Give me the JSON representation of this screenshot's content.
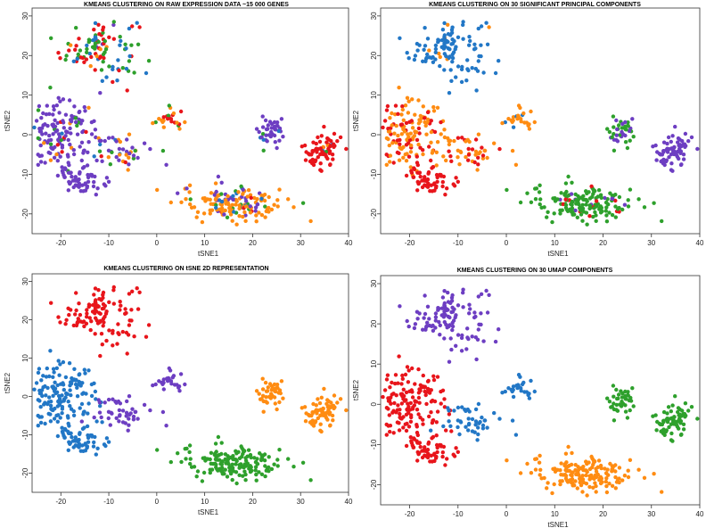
{
  "colors": {
    "red": "#e8151b",
    "blue": "#2277c6",
    "green": "#2ea02c",
    "purple": "#6d3ec2",
    "orange": "#ff8c12"
  },
  "chart_data": [
    {
      "type": "scatter",
      "title": "KMEANS CLUSTERING ON RAW EXPRESSION DATA ~15 000 GENES",
      "xlabel": "tSNE1",
      "ylabel": "tSNE2",
      "xlim": [
        -28,
        40
      ],
      "ylim": [
        -25,
        32
      ],
      "xticks": [
        "-20",
        "-10",
        "0",
        "10",
        "20",
        "30",
        "40"
      ],
      "yticks": [
        "-20",
        "-10",
        "0",
        "10",
        "20",
        "30"
      ],
      "grid": false,
      "legend": "none",
      "groups": [
        {
          "cx": -12,
          "cy": 22,
          "sx": 4.0,
          "sy": 4.0,
          "n": 110,
          "colors": [
            "red",
            "blue",
            "green",
            "purple",
            "orange"
          ],
          "weights": [
            0.3,
            0.3,
            0.3,
            0.05,
            0.05
          ]
        },
        {
          "cx": -20,
          "cy": 0,
          "sx": 4.0,
          "sy": 4.0,
          "n": 150,
          "colors": [
            "purple",
            "orange",
            "green",
            "red",
            "blue"
          ],
          "weights": [
            0.85,
            0.05,
            0.05,
            0.03,
            0.02
          ]
        },
        {
          "cx": -15.5,
          "cy": -11,
          "sx": 2.4,
          "sy": 2.0,
          "n": 60,
          "colors": [
            "purple",
            "orange"
          ],
          "weights": [
            0.95,
            0.05
          ]
        },
        {
          "cx": -7,
          "cy": -4,
          "sx": 3.0,
          "sy": 2.0,
          "n": 45,
          "colors": [
            "purple",
            "orange",
            "green",
            "red",
            "blue"
          ],
          "weights": [
            0.55,
            0.25,
            0.1,
            0.05,
            0.05
          ]
        },
        {
          "cx": 2,
          "cy": 3.5,
          "sx": 1.8,
          "sy": 1.5,
          "n": 25,
          "colors": [
            "orange",
            "red",
            "green",
            "blue"
          ],
          "weights": [
            0.5,
            0.3,
            0.1,
            0.1
          ]
        },
        {
          "cx": 24,
          "cy": 0.5,
          "sx": 1.6,
          "sy": 2.0,
          "n": 40,
          "colors": [
            "purple",
            "blue",
            "green"
          ],
          "weights": [
            0.9,
            0.05,
            0.05
          ]
        },
        {
          "cx": 34.5,
          "cy": -4,
          "sx": 2.0,
          "sy": 2.5,
          "n": 70,
          "colors": [
            "red",
            "green",
            "blue",
            "orange"
          ],
          "weights": [
            0.8,
            0.1,
            0.05,
            0.05
          ]
        },
        {
          "cx": 16,
          "cy": -17,
          "sx": 5.5,
          "sy": 2.3,
          "n": 160,
          "colors": [
            "orange",
            "purple",
            "green",
            "red",
            "blue"
          ],
          "weights": [
            0.6,
            0.15,
            0.15,
            0.05,
            0.05
          ]
        }
      ]
    },
    {
      "type": "scatter",
      "title": "KMEANS CLUSTERING ON 30 SIGNIFICANT PRINCIPAL COMPONENTS",
      "xlabel": "tSNE1",
      "ylabel": "tSNE2",
      "xlim": [
        -28,
        40
      ],
      "ylim": [
        -25,
        32
      ],
      "xticks": [
        "-20",
        "-10",
        "0",
        "10",
        "20",
        "30",
        "40"
      ],
      "yticks": [
        "-20",
        "-10",
        "0",
        "10",
        "20",
        "30"
      ],
      "grid": false,
      "legend": "none",
      "groups": [
        {
          "cx": -12,
          "cy": 22,
          "sx": 4.0,
          "sy": 4.0,
          "n": 110,
          "colors": [
            "blue",
            "orange"
          ],
          "weights": [
            0.96,
            0.04
          ]
        },
        {
          "cx": -20,
          "cy": 0,
          "sx": 4.0,
          "sy": 4.0,
          "n": 150,
          "colors": [
            "orange",
            "red"
          ],
          "weights": [
            0.65,
            0.35
          ]
        },
        {
          "cx": -15.5,
          "cy": -11,
          "sx": 2.4,
          "sy": 2.0,
          "n": 60,
          "colors": [
            "red"
          ],
          "weights": [
            1
          ]
        },
        {
          "cx": -7,
          "cy": -4,
          "sx": 3.0,
          "sy": 2.0,
          "n": 45,
          "colors": [
            "orange",
            "red"
          ],
          "weights": [
            0.7,
            0.3
          ]
        },
        {
          "cx": 2,
          "cy": 3.5,
          "sx": 1.8,
          "sy": 1.5,
          "n": 25,
          "colors": [
            "orange",
            "blue"
          ],
          "weights": [
            0.75,
            0.25
          ]
        },
        {
          "cx": 24,
          "cy": 0.5,
          "sx": 1.6,
          "sy": 2.0,
          "n": 40,
          "colors": [
            "green",
            "purple"
          ],
          "weights": [
            0.55,
            0.45
          ]
        },
        {
          "cx": 34.5,
          "cy": -4,
          "sx": 2.0,
          "sy": 2.5,
          "n": 70,
          "colors": [
            "purple"
          ],
          "weights": [
            1
          ]
        },
        {
          "cx": 16,
          "cy": -17,
          "sx": 5.5,
          "sy": 2.3,
          "n": 160,
          "colors": [
            "green",
            "red",
            "purple"
          ],
          "weights": [
            0.8,
            0.1,
            0.1
          ]
        }
      ]
    },
    {
      "type": "scatter",
      "title": "KMEANS CLUSTERING ON tSNE 2D REPRESENTATION",
      "xlabel": "tSNE1",
      "ylabel": "tSNE2",
      "xlim": [
        -28,
        40
      ],
      "ylim": [
        -25,
        32
      ],
      "xticks": [
        "-20",
        "-10",
        "0",
        "10",
        "20",
        "30",
        "40"
      ],
      "yticks": [
        "-20",
        "-10",
        "0",
        "10",
        "20",
        "30"
      ],
      "grid": false,
      "legend": "none",
      "groups": [
        {
          "cx": -12,
          "cy": 22,
          "sx": 4.0,
          "sy": 4.0,
          "n": 110,
          "colors": [
            "red"
          ],
          "weights": [
            1
          ]
        },
        {
          "cx": -20,
          "cy": 0,
          "sx": 4.0,
          "sy": 4.0,
          "n": 150,
          "colors": [
            "blue"
          ],
          "weights": [
            1
          ]
        },
        {
          "cx": -15.5,
          "cy": -11,
          "sx": 2.4,
          "sy": 2.0,
          "n": 60,
          "colors": [
            "blue"
          ],
          "weights": [
            1
          ]
        },
        {
          "cx": -7,
          "cy": -4,
          "sx": 3.0,
          "sy": 2.0,
          "n": 45,
          "colors": [
            "purple"
          ],
          "weights": [
            1
          ]
        },
        {
          "cx": 2,
          "cy": 3.5,
          "sx": 1.8,
          "sy": 1.5,
          "n": 25,
          "colors": [
            "purple"
          ],
          "weights": [
            1
          ]
        },
        {
          "cx": 24,
          "cy": 0.5,
          "sx": 1.6,
          "sy": 2.0,
          "n": 40,
          "colors": [
            "orange"
          ],
          "weights": [
            1
          ]
        },
        {
          "cx": 34.5,
          "cy": -4,
          "sx": 2.0,
          "sy": 2.5,
          "n": 70,
          "colors": [
            "orange"
          ],
          "weights": [
            1
          ]
        },
        {
          "cx": 16,
          "cy": -17,
          "sx": 5.5,
          "sy": 2.3,
          "n": 160,
          "colors": [
            "green"
          ],
          "weights": [
            1
          ]
        }
      ]
    },
    {
      "type": "scatter",
      "title": "KMEANS CLUSTERING ON 30 UMAP COMPONENTS",
      "xlabel": "tSNE1",
      "ylabel": "tSNE2",
      "xlim": [
        -28,
        40
      ],
      "ylim": [
        -25,
        32
      ],
      "xticks": [
        "-20",
        "-10",
        "0",
        "10",
        "20",
        "30",
        "40"
      ],
      "yticks": [
        "-20",
        "-10",
        "0",
        "10",
        "20",
        "30"
      ],
      "grid": false,
      "legend": "none",
      "groups": [
        {
          "cx": -12,
          "cy": 22,
          "sx": 4.0,
          "sy": 4.0,
          "n": 110,
          "colors": [
            "purple"
          ],
          "weights": [
            1
          ]
        },
        {
          "cx": -20,
          "cy": 0,
          "sx": 4.0,
          "sy": 4.0,
          "n": 150,
          "colors": [
            "red"
          ],
          "weights": [
            1
          ]
        },
        {
          "cx": -15.5,
          "cy": -11,
          "sx": 2.4,
          "sy": 2.0,
          "n": 60,
          "colors": [
            "red"
          ],
          "weights": [
            1
          ]
        },
        {
          "cx": -7,
          "cy": -4,
          "sx": 3.0,
          "sy": 2.0,
          "n": 45,
          "colors": [
            "blue"
          ],
          "weights": [
            1
          ]
        },
        {
          "cx": 2,
          "cy": 3.5,
          "sx": 1.8,
          "sy": 1.5,
          "n": 25,
          "colors": [
            "blue"
          ],
          "weights": [
            1
          ]
        },
        {
          "cx": 24,
          "cy": 0.5,
          "sx": 1.6,
          "sy": 2.0,
          "n": 40,
          "colors": [
            "green"
          ],
          "weights": [
            1
          ]
        },
        {
          "cx": 34.5,
          "cy": -4,
          "sx": 2.0,
          "sy": 2.5,
          "n": 70,
          "colors": [
            "green"
          ],
          "weights": [
            1
          ]
        },
        {
          "cx": 16,
          "cy": -17,
          "sx": 5.5,
          "sy": 2.3,
          "n": 160,
          "colors": [
            "orange"
          ],
          "weights": [
            1
          ]
        }
      ]
    }
  ]
}
